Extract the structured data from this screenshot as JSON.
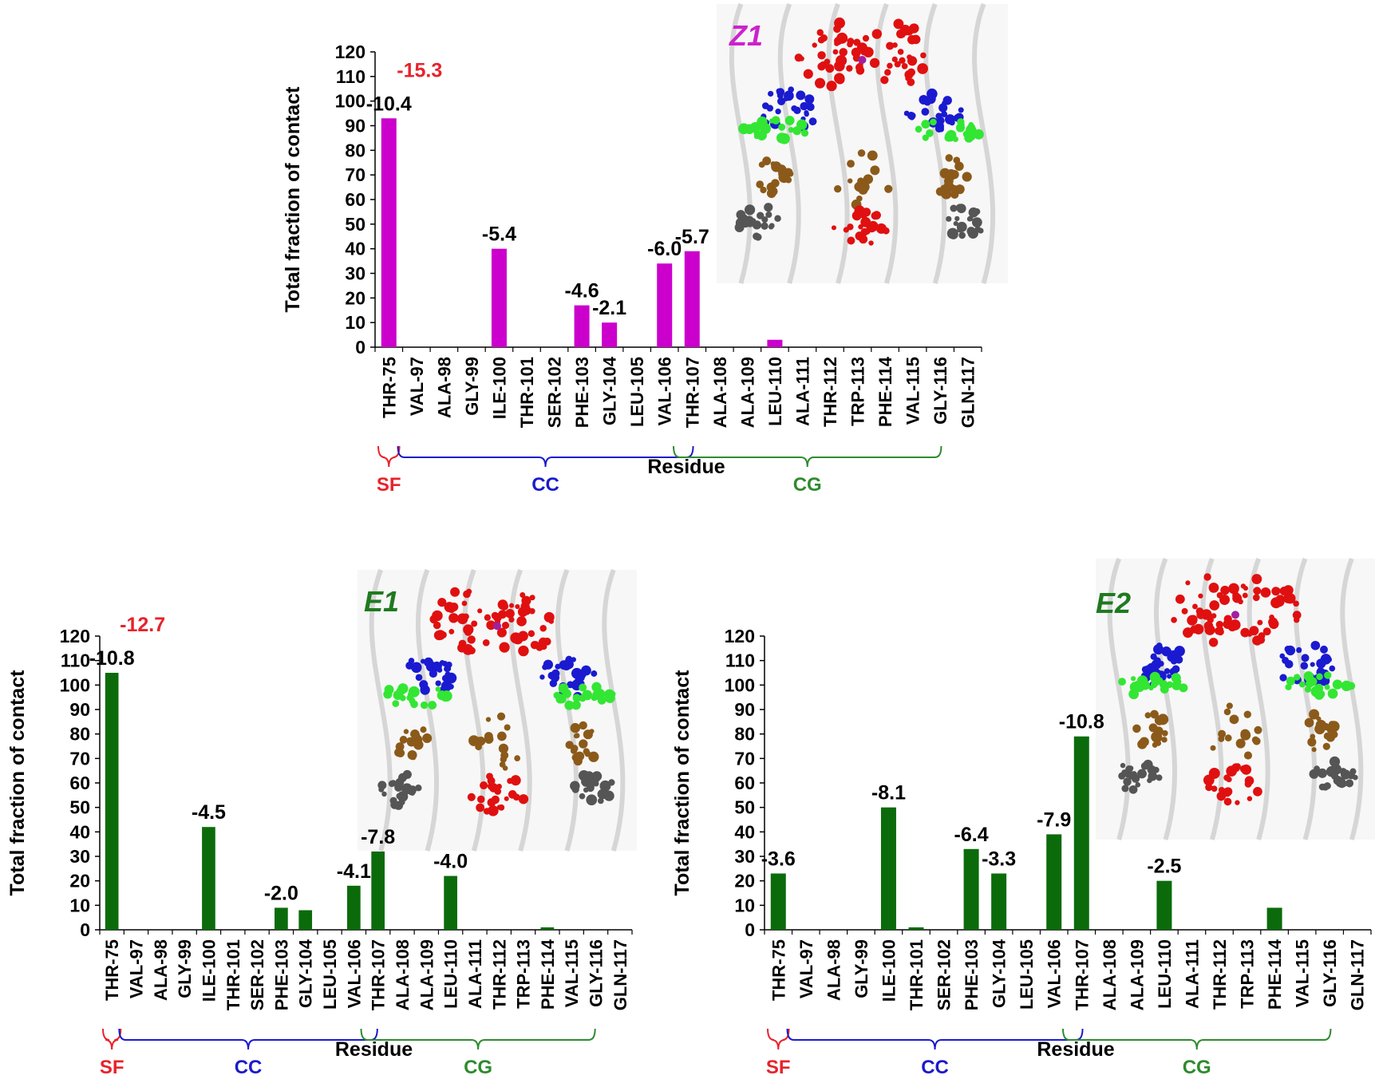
{
  "colors": {
    "z1_bar": "#CC00CC",
    "e_bar": "#0B6B0B",
    "highlight_label": "#E8222B",
    "sf": "#E8222B",
    "cc": "#1A1ACC",
    "cg": "#2E8B2E",
    "z1_title": "#CC22CC",
    "e_title": "#1F7A1F"
  },
  "inset_icons": [
    "molecular-structure-render"
  ],
  "chart_data": [
    {
      "type": "bar",
      "panel": "Z1",
      "title": "Z1",
      "xlabel": "Residue",
      "ylabel": "Total fraction of contact",
      "ylim": [
        0,
        120
      ],
      "yticks": [
        "0",
        "10",
        "20",
        "30",
        "40",
        "50",
        "60",
        "70",
        "80",
        "90",
        "100",
        "110",
        "120"
      ],
      "grid": false,
      "categories": [
        "THR-75",
        "VAL-97",
        "ALA-98",
        "GLY-99",
        "ILE-100",
        "THR-101",
        "SER-102",
        "PHE-103",
        "GLY-104",
        "LEU-105",
        "VAL-106",
        "THR-107",
        "ALA-108",
        "ALA-109",
        "LEU-110",
        "ALA-111",
        "THR-112",
        "TRP-113",
        "PHE-114",
        "VAL-115",
        "GLY-116",
        "GLN-117"
      ],
      "values": [
        93,
        0,
        0,
        0,
        40,
        0,
        0,
        17,
        10,
        0,
        34,
        39,
        0,
        0,
        3,
        0,
        0,
        0,
        0,
        0,
        0,
        0
      ],
      "bar_labels": [
        {
          "index": 0,
          "text": "-10.4"
        },
        {
          "index": 4,
          "text": "-5.4"
        },
        {
          "index": 7,
          "text": "-4.6"
        },
        {
          "index": 8,
          "text": "-2.1"
        },
        {
          "index": 10,
          "text": "-6.0"
        },
        {
          "index": 11,
          "text": "-5.7"
        }
      ],
      "highlight_label": {
        "index": 0,
        "text": "-15.3"
      },
      "regions": [
        {
          "name": "SF",
          "from": 0,
          "to": 0
        },
        {
          "name": "CC",
          "from": 1,
          "to": 11
        },
        {
          "name": "CG",
          "from": 11,
          "to": 20
        }
      ]
    },
    {
      "type": "bar",
      "panel": "E1",
      "title": "E1",
      "xlabel": "Residue",
      "ylabel": "Total fraction of contact",
      "ylim": [
        0,
        120
      ],
      "yticks": [
        "0",
        "10",
        "20",
        "30",
        "40",
        "50",
        "60",
        "70",
        "80",
        "90",
        "100",
        "110",
        "120"
      ],
      "grid": false,
      "categories": [
        "THR-75",
        "VAL-97",
        "ALA-98",
        "GLY-99",
        "ILE-100",
        "THR-101",
        "SER-102",
        "PHE-103",
        "GLY-104",
        "LEU-105",
        "VAL-106",
        "THR-107",
        "ALA-108",
        "ALA-109",
        "LEU-110",
        "ALA-111",
        "THR-112",
        "TRP-113",
        "PHE-114",
        "VAL-115",
        "GLY-116",
        "GLN-117"
      ],
      "values": [
        105,
        0,
        0,
        0,
        42,
        0,
        0,
        9,
        8,
        0,
        18,
        32,
        0,
        0,
        22,
        0,
        0,
        0,
        1,
        0,
        0,
        0
      ],
      "bar_labels": [
        {
          "index": 0,
          "text": "-10.8"
        },
        {
          "index": 4,
          "text": "-4.5"
        },
        {
          "index": 7,
          "text": "-2.0"
        },
        {
          "index": 10,
          "text": "-4.1"
        },
        {
          "index": 11,
          "text": "-7.8"
        },
        {
          "index": 14,
          "text": "-4.0"
        }
      ],
      "highlight_label": {
        "index": 0,
        "text": "-12.7"
      },
      "regions": [
        {
          "name": "SF",
          "from": 0,
          "to": 0
        },
        {
          "name": "CC",
          "from": 1,
          "to": 11
        },
        {
          "name": "CG",
          "from": 11,
          "to": 20
        }
      ]
    },
    {
      "type": "bar",
      "panel": "E2",
      "title": "E2",
      "xlabel": "Residue",
      "ylabel": "Total fraction of contact",
      "ylim": [
        0,
        120
      ],
      "yticks": [
        "0",
        "10",
        "20",
        "30",
        "40",
        "50",
        "60",
        "70",
        "80",
        "90",
        "100",
        "110",
        "120"
      ],
      "grid": false,
      "categories": [
        "THR-75",
        "VAL-97",
        "ALA-98",
        "GLY-99",
        "ILE-100",
        "THR-101",
        "SER-102",
        "PHE-103",
        "GLY-104",
        "LEU-105",
        "VAL-106",
        "THR-107",
        "ALA-108",
        "ALA-109",
        "LEU-110",
        "ALA-111",
        "THR-112",
        "TRP-113",
        "PHE-114",
        "VAL-115",
        "GLY-116",
        "GLN-117"
      ],
      "values": [
        23,
        0,
        0,
        0,
        50,
        1,
        0,
        33,
        23,
        0,
        39,
        79,
        0,
        0,
        20,
        0,
        0,
        0,
        9,
        0,
        0,
        0
      ],
      "bar_labels": [
        {
          "index": 0,
          "text": "-3.6"
        },
        {
          "index": 4,
          "text": "-8.1"
        },
        {
          "index": 7,
          "text": "-6.4"
        },
        {
          "index": 8,
          "text": "-3.3"
        },
        {
          "index": 10,
          "text": "-7.9"
        },
        {
          "index": 11,
          "text": "-10.8"
        },
        {
          "index": 14,
          "text": "-2.5"
        }
      ],
      "regions": [
        {
          "name": "SF",
          "from": 0,
          "to": 0
        },
        {
          "name": "CC",
          "from": 1,
          "to": 11
        },
        {
          "name": "CG",
          "from": 11,
          "to": 20
        }
      ]
    }
  ]
}
